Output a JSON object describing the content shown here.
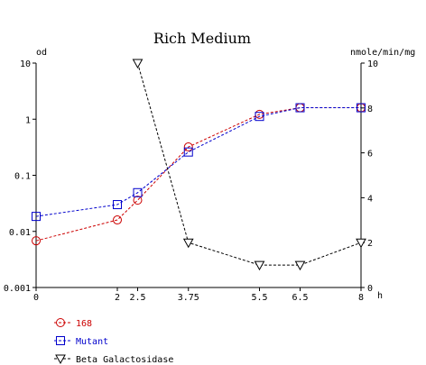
{
  "chart_data": {
    "type": "line",
    "title": "Rich Medium",
    "x_unit": "h",
    "left_axis_unit": "od",
    "right_axis_unit": "nmole/min/mg",
    "x_ticks": [
      0,
      2,
      2.5,
      3.75,
      5.5,
      6.5,
      8
    ],
    "x_tick_labels": [
      "0",
      "2",
      "2.5",
      "3.75",
      "5.5",
      "6.5",
      "8"
    ],
    "xlim": [
      0,
      8
    ],
    "left_ylim": [
      0.001,
      10
    ],
    "left_scale": "log",
    "left_ticks": [
      0.001,
      0.01,
      0.1,
      1,
      10
    ],
    "left_tick_labels": [
      "0.001",
      "0.01",
      "0.1",
      "1",
      "10"
    ],
    "right_ylim": [
      0,
      10
    ],
    "right_scale": "linear",
    "right_ticks": [
      0,
      2,
      4,
      6,
      8,
      10
    ],
    "right_tick_labels": [
      "0",
      "2",
      "4",
      "6",
      "8",
      "10"
    ],
    "grid": false,
    "legend_position": "bottom-left",
    "series": [
      {
        "name": "168",
        "axis": "left",
        "color": "#cc0000",
        "marker": "circle",
        "x": [
          0,
          2,
          2.5,
          3.75,
          5.5,
          6.5,
          8
        ],
        "y": [
          0.0068,
          0.016,
          0.036,
          0.32,
          1.22,
          1.6,
          1.6
        ]
      },
      {
        "name": "Mutant",
        "axis": "left",
        "color": "#0000cc",
        "marker": "square",
        "x": [
          0,
          2,
          2.5,
          3.75,
          5.5,
          6.5,
          8
        ],
        "y": [
          0.0185,
          0.03,
          0.049,
          0.26,
          1.12,
          1.6,
          1.6
        ]
      },
      {
        "name": "Beta Galactosidase",
        "axis": "right",
        "color": "#000000",
        "marker": "triangle-down",
        "x": [
          2.5,
          3.75,
          5.5,
          6.5,
          8
        ],
        "y": [
          10,
          2,
          1,
          1,
          2
        ]
      }
    ]
  }
}
